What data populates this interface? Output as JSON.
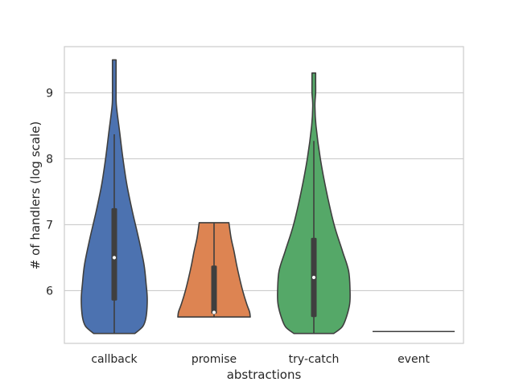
{
  "chart_data": {
    "type": "violin",
    "xlabel": "abstractions",
    "ylabel": "# of handlers (log scale)",
    "ylim": [
      5.2,
      9.7
    ],
    "yticks": [
      6,
      7,
      8,
      9
    ],
    "ytick_labels": [
      "6",
      "7",
      "8",
      "9"
    ],
    "grid": "horizontal",
    "categories": [
      "callback",
      "promise",
      "try-catch",
      "event"
    ],
    "series": [
      {
        "category": "callback",
        "color": "#4c72b0",
        "min": 5.35,
        "max": 9.5,
        "q1": 5.85,
        "median": 6.5,
        "q3": 7.25,
        "whisker_low": 5.35,
        "whisker_high": 8.37,
        "density": [
          [
            5.35,
            0.57
          ],
          [
            5.45,
            0.78
          ],
          [
            5.55,
            0.86
          ],
          [
            5.7,
            0.9
          ],
          [
            5.9,
            0.91
          ],
          [
            6.1,
            0.88
          ],
          [
            6.4,
            0.82
          ],
          [
            6.8,
            0.67
          ],
          [
            7.2,
            0.5
          ],
          [
            7.6,
            0.35
          ],
          [
            8.0,
            0.24
          ],
          [
            8.4,
            0.15
          ],
          [
            8.8,
            0.06
          ],
          [
            9.0,
            0.05
          ],
          [
            9.2,
            0.05
          ],
          [
            9.4,
            0.05
          ],
          [
            9.5,
            0.05
          ]
        ]
      },
      {
        "category": "promise",
        "color": "#dd8452",
        "min": 5.6,
        "max": 7.03,
        "q1": 5.65,
        "median": 5.67,
        "q3": 6.38,
        "whisker_low": 5.6,
        "whisker_high": 7.03,
        "density": [
          [
            5.6,
            1.0
          ],
          [
            5.68,
            0.98
          ],
          [
            5.8,
            0.9
          ],
          [
            6.0,
            0.79
          ],
          [
            6.2,
            0.7
          ],
          [
            6.4,
            0.62
          ],
          [
            6.6,
            0.55
          ],
          [
            6.8,
            0.47
          ],
          [
            7.03,
            0.41
          ]
        ]
      },
      {
        "category": "try-catch",
        "color": "#55a868",
        "min": 5.35,
        "max": 9.3,
        "q1": 5.6,
        "median": 6.2,
        "q3": 6.8,
        "whisker_low": 5.35,
        "whisker_high": 8.27,
        "density": [
          [
            5.35,
            0.55
          ],
          [
            5.45,
            0.78
          ],
          [
            5.6,
            0.9
          ],
          [
            5.8,
            0.99
          ],
          [
            6.0,
            1.0
          ],
          [
            6.3,
            0.96
          ],
          [
            6.6,
            0.79
          ],
          [
            7.0,
            0.56
          ],
          [
            7.5,
            0.35
          ],
          [
            8.0,
            0.18
          ],
          [
            8.5,
            0.06
          ],
          [
            8.8,
            0.03
          ],
          [
            9.0,
            0.05
          ],
          [
            9.15,
            0.05
          ],
          [
            9.3,
            0.05
          ]
        ]
      },
      {
        "category": "event",
        "color": "#c44e52",
        "min": 5.38,
        "max": 5.38,
        "degenerate": true
      }
    ]
  }
}
